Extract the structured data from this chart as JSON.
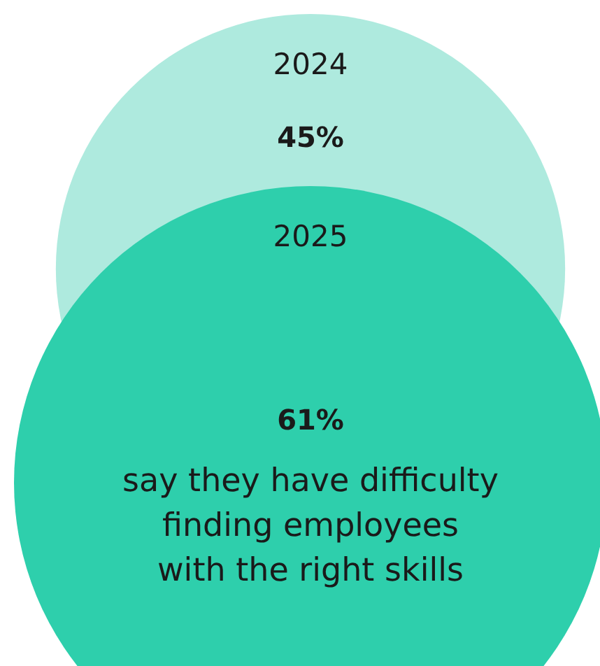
{
  "chart_data": {
    "type": "other",
    "categories": [
      "2024",
      "2025"
    ],
    "values": [
      45,
      61
    ],
    "value_labels": [
      "45%",
      "61%"
    ],
    "colors": [
      "#aeeade",
      "#2ecfac"
    ],
    "annotations": [
      "say they have difficulty\nfinding employees\nwith the right skills"
    ]
  }
}
